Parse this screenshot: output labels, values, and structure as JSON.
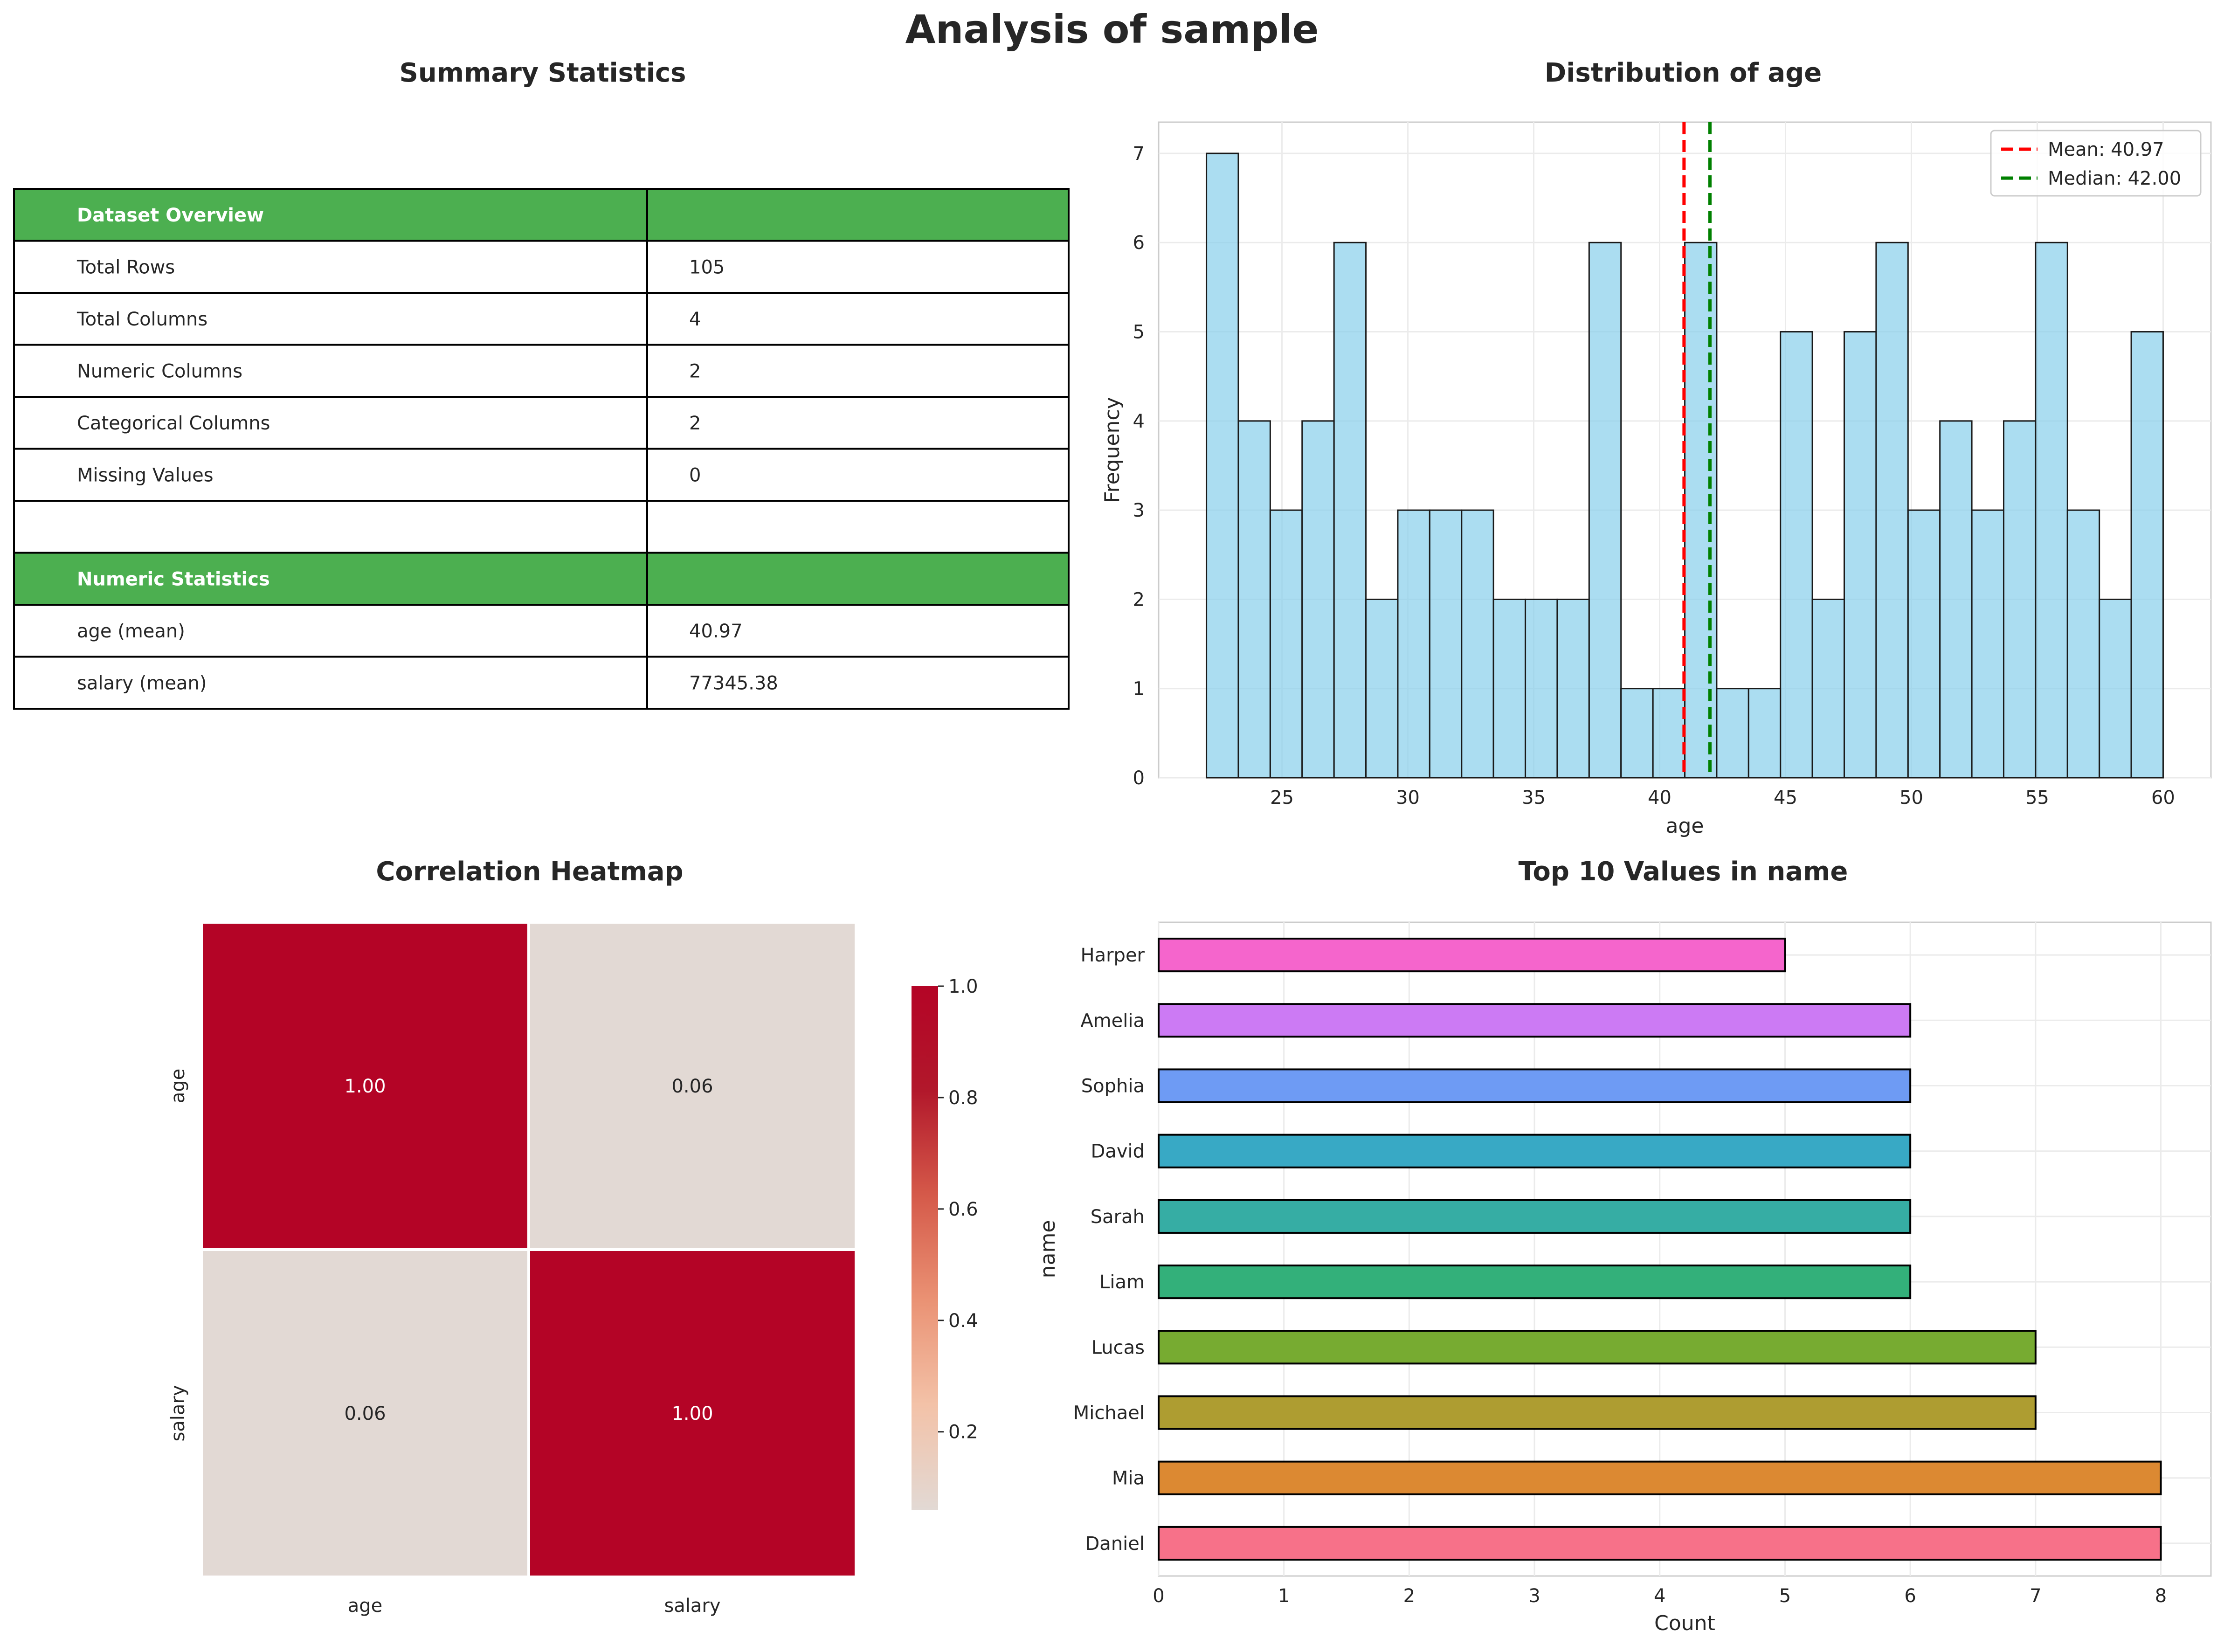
{
  "figure": {
    "title": "Analysis of sample"
  },
  "summary": {
    "title": "Summary Statistics",
    "header_color": "#4caf50",
    "rows": [
      {
        "label": "Dataset Overview",
        "value": "",
        "header": true
      },
      {
        "label": "Total Rows",
        "value": "105"
      },
      {
        "label": "Total Columns",
        "value": "4"
      },
      {
        "label": "Numeric Columns",
        "value": "2"
      },
      {
        "label": "Categorical Columns",
        "value": "2"
      },
      {
        "label": "Missing Values",
        "value": "0"
      },
      {
        "label": "",
        "value": ""
      },
      {
        "label": "Numeric Statistics",
        "value": "",
        "header": true
      },
      {
        "label": "age (mean)",
        "value": "40.97"
      },
      {
        "label": "salary (mean)",
        "value": "77345.38"
      }
    ]
  },
  "chart_data": [
    {
      "type": "bar",
      "subtype": "histogram",
      "title": "Distribution of age",
      "xlabel": "age",
      "ylabel": "Frequency",
      "xlim": [
        20.1,
        61.9
      ],
      "ylim": [
        0,
        7.35
      ],
      "xticks": [
        25,
        30,
        35,
        40,
        45,
        50,
        55,
        60
      ],
      "yticks": [
        0,
        1,
        2,
        3,
        4,
        5,
        6,
        7
      ],
      "bin_start": 22,
      "bin_width": 1.2667,
      "counts": [
        7,
        4,
        3,
        4,
        6,
        2,
        3,
        3,
        3,
        2,
        2,
        2,
        6,
        1,
        1,
        6,
        1,
        1,
        5,
        2,
        5,
        6,
        3,
        4,
        3,
        4,
        6,
        3,
        2,
        5
      ],
      "bar_color": "#87ceeb",
      "mean": 40.97,
      "median": 42.0,
      "legend": [
        {
          "label": "Mean: 40.97",
          "color": "#ff0000"
        },
        {
          "label": "Median: 42.00",
          "color": "#008000"
        }
      ],
      "legend_position": "top-right",
      "grid": true
    },
    {
      "type": "heatmap",
      "title": "Correlation Heatmap",
      "labels": [
        "age",
        "salary"
      ],
      "matrix": [
        [
          1.0,
          0.06
        ],
        [
          0.06,
          1.0
        ]
      ],
      "annotations": [
        [
          "1.00",
          "0.06"
        ],
        [
          "0.06",
          "1.00"
        ]
      ],
      "colorbar": {
        "min": 0.06,
        "max": 1.0,
        "ticks": [
          "0.2",
          "0.4",
          "0.6",
          "0.8",
          "1.0"
        ],
        "tick_values": [
          0.2,
          0.4,
          0.6,
          0.8,
          1.0
        ]
      },
      "colorscale": [
        "#e2d9d4",
        "#f3c2a8",
        "#ea9274",
        "#d55a4a",
        "#b2182b",
        "#b40426"
      ]
    },
    {
      "type": "bar",
      "orientation": "horizontal",
      "title": "Top 10 Values in name",
      "xlabel": "Count",
      "ylabel": "name",
      "xlim": [
        0,
        8.4
      ],
      "xticks": [
        0,
        1,
        2,
        3,
        4,
        5,
        6,
        7,
        8
      ],
      "categories": [
        "Daniel",
        "Mia",
        "Michael",
        "Lucas",
        "Liam",
        "Sarah",
        "David",
        "Sophia",
        "Amelia",
        "Harper"
      ],
      "values": [
        8,
        8,
        7,
        7,
        6,
        6,
        6,
        6,
        6,
        5
      ],
      "colors": [
        "#f77189",
        "#dc8932",
        "#ae9d31",
        "#77ab31",
        "#33b07a",
        "#36ada4",
        "#38a9c5",
        "#6e9bf4",
        "#cc7af4",
        "#f565cc"
      ],
      "grid": true
    }
  ]
}
